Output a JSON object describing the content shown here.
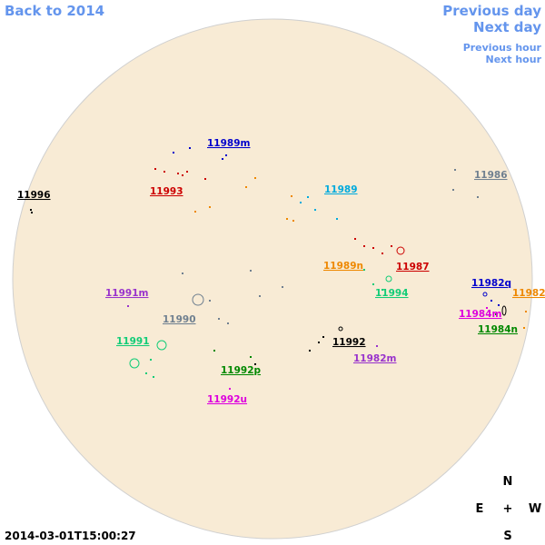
{
  "nav": {
    "back": "Back to 2014",
    "previous_day": "Previous day",
    "next_day": "Next day",
    "previous_hour": "Previous hour",
    "next_hour": "Next hour"
  },
  "regions": [
    {
      "text": "11989m",
      "color": "#0000cc"
    },
    {
      "text": "11996",
      "color": "#000000"
    },
    {
      "text": "11993",
      "color": "#cc0000"
    },
    {
      "text": "11986",
      "color": "#708090"
    },
    {
      "text": "11989",
      "color": "#00aadd"
    },
    {
      "text": "11989n",
      "color": "#ee8800"
    },
    {
      "text": "11987",
      "color": "#cc0000"
    },
    {
      "text": "11994",
      "color": "#11cc77"
    },
    {
      "text": "11982q",
      "color": "#0000cc"
    },
    {
      "text": "11982",
      "color": "#ee8800"
    },
    {
      "text": "11991m",
      "color": "#9933cc"
    },
    {
      "text": "11990",
      "color": "#708090"
    },
    {
      "text": "11984m",
      "color": "#dd00dd"
    },
    {
      "text": "11984n",
      "color": "#008800"
    },
    {
      "text": "11991",
      "color": "#11cc77"
    },
    {
      "text": "11992",
      "color": "#000000"
    },
    {
      "text": "11982m",
      "color": "#9933cc"
    },
    {
      "text": "11992p",
      "color": "#008800"
    },
    {
      "text": "11992u",
      "color": "#dd00dd"
    }
  ],
  "timestamp": "2014-03-01T15:00:27",
  "compass": {
    "north": "N",
    "east": "E",
    "center": "+",
    "west": "W",
    "south": "S"
  }
}
